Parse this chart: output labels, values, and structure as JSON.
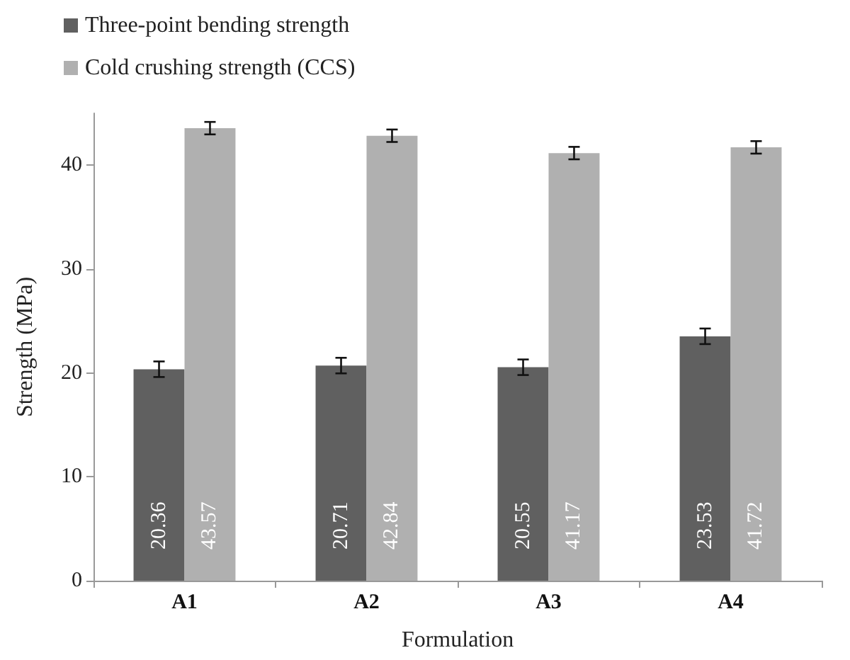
{
  "chart_data": {
    "type": "bar",
    "xlabel": "Formulation",
    "ylabel": "Strength (MPa)",
    "categories": [
      "A1",
      "A2",
      "A3",
      "A4"
    ],
    "series": [
      {
        "name": "Three-point bending strength",
        "color": "#606060",
        "values": [
          20.36,
          20.71,
          20.55,
          23.53
        ],
        "errors": [
          0.75,
          0.75,
          0.75,
          0.75
        ]
      },
      {
        "name": "Cold crushing strength (CCS)",
        "color": "#b0b0b0",
        "values": [
          43.57,
          42.84,
          41.17,
          41.72
        ],
        "errors": [
          0.6,
          0.6,
          0.6,
          0.6
        ]
      }
    ],
    "ylim": [
      0,
      45
    ],
    "yticks": [
      0,
      10,
      20,
      30,
      40
    ],
    "grid": false,
    "legend": "top left",
    "data_labels": true
  }
}
